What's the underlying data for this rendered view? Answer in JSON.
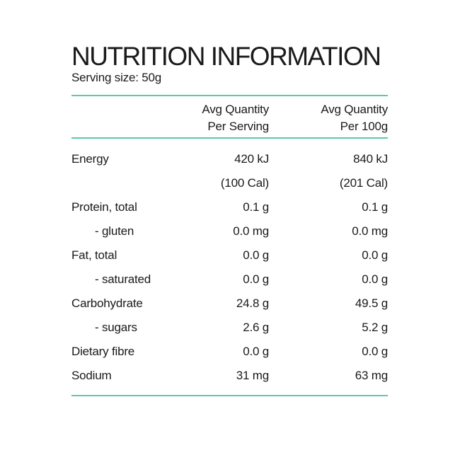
{
  "panel": {
    "title": "NUTRITION INFORMATION",
    "serving_size": "Serving size: 50g",
    "accent_color": "#5bc8b0",
    "columns": [
      {
        "line1": "Avg Quantity",
        "line2": "Per Serving"
      },
      {
        "line1": "Avg Quantity",
        "line2": "Per 100g"
      }
    ],
    "rows": [
      {
        "label": "Energy",
        "per_serving": "420 kJ",
        "per_100g": "840 kJ",
        "sub": false
      },
      {
        "label": "",
        "per_serving": "(100 Cal)",
        "per_100g": "(201 Cal)",
        "sub": false
      },
      {
        "label": "Protein, total",
        "per_serving": "0.1 g",
        "per_100g": "0.1 g",
        "sub": false
      },
      {
        "label": "- gluten",
        "per_serving": "0.0 mg",
        "per_100g": "0.0 mg",
        "sub": true
      },
      {
        "label": "Fat, total",
        "per_serving": "0.0 g",
        "per_100g": "0.0 g",
        "sub": false
      },
      {
        "label": "- saturated",
        "per_serving": "0.0 g",
        "per_100g": "0.0 g",
        "sub": true
      },
      {
        "label": "Carbohydrate",
        "per_serving": "24.8 g",
        "per_100g": "49.5 g",
        "sub": false
      },
      {
        "label": "- sugars",
        "per_serving": "2.6 g",
        "per_100g": "5.2 g",
        "sub": true
      },
      {
        "label": "Dietary fibre",
        "per_serving": "0.0 g",
        "per_100g": "0.0 g",
        "sub": false
      },
      {
        "label": "Sodium",
        "per_serving": "31 mg",
        "per_100g": "63 mg",
        "sub": false
      }
    ]
  }
}
